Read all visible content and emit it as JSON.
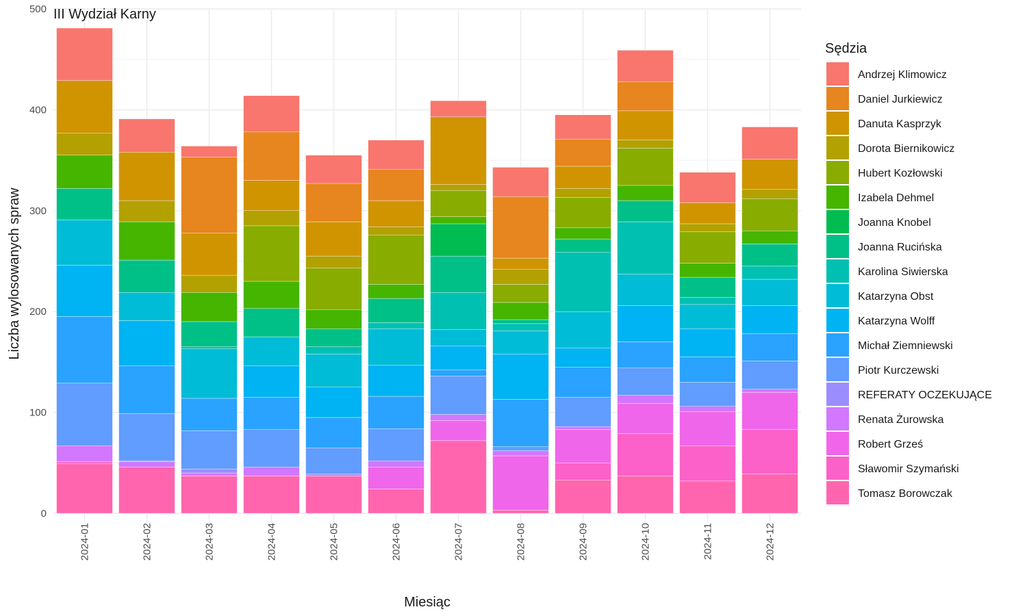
{
  "chart_data": {
    "type": "bar",
    "stacked": true,
    "title": "III Wydział Karny",
    "xlabel": "Miesiąc",
    "ylabel": "Liczba wylosowanych spraw",
    "ylim": [
      0,
      500
    ],
    "yticks": [
      0,
      100,
      200,
      300,
      400,
      500
    ],
    "grid": true,
    "legend_title": "Sędzia",
    "legend_position": "right",
    "categories": [
      "2024-01",
      "2024-02",
      "2024-03",
      "2024-04",
      "2024-05",
      "2024-06",
      "2024-07",
      "2024-08",
      "2024-09",
      "2024-10",
      "2024-11",
      "2024-12"
    ],
    "series": [
      {
        "name": "Andrzej Klimowicz",
        "color": "#F8766D",
        "values": [
          52,
          33,
          11,
          36,
          28,
          29,
          16,
          29,
          24,
          31,
          30,
          32
        ]
      },
      {
        "name": "Daniel Jurkiewicz",
        "color": "#E7851E",
        "values": [
          0,
          0,
          75,
          48,
          38,
          31,
          0,
          61,
          27,
          29,
          0,
          0
        ]
      },
      {
        "name": "Danuta Kasprzyk",
        "color": "#D09400",
        "values": [
          52,
          48,
          42,
          30,
          34,
          26,
          67,
          11,
          22,
          29,
          21,
          30
        ]
      },
      {
        "name": "Dorota Biernikowicz",
        "color": "#B2A100",
        "values": [
          22,
          21,
          17,
          15,
          12,
          8,
          6,
          15,
          9,
          8,
          8,
          9
        ]
      },
      {
        "name": "Hubert Kozłowski",
        "color": "#89AC00",
        "values": [
          0,
          0,
          0,
          55,
          41,
          49,
          26,
          18,
          30,
          37,
          31,
          32
        ]
      },
      {
        "name": "Izabela Dehmel",
        "color": "#45B500",
        "values": [
          33,
          38,
          29,
          27,
          19,
          14,
          7,
          17,
          11,
          15,
          14,
          13
        ]
      },
      {
        "name": "Joanna Knobel",
        "color": "#00BC51",
        "values": [
          0,
          0,
          0,
          0,
          0,
          0,
          32,
          0,
          0,
          0,
          0,
          0
        ]
      },
      {
        "name": "Joanna Rucińska",
        "color": "#00C087",
        "values": [
          31,
          32,
          25,
          28,
          18,
          24,
          36,
          4,
          13,
          21,
          20,
          22
        ]
      },
      {
        "name": "Karolina Siwierska",
        "color": "#00C0B2",
        "values": [
          0,
          0,
          2,
          0,
          7,
          6,
          37,
          7,
          59,
          52,
          7,
          13
        ]
      },
      {
        "name": "Katarzyna Obst",
        "color": "#00BCD6",
        "values": [
          45,
          28,
          49,
          29,
          33,
          36,
          16,
          23,
          36,
          31,
          24,
          26
        ]
      },
      {
        "name": "Katarzyna Wolff",
        "color": "#00B3F2",
        "values": [
          51,
          45,
          0,
          31,
          30,
          31,
          24,
          45,
          19,
          36,
          28,
          28
        ]
      },
      {
        "name": "Michał Ziemniewski",
        "color": "#29A3FF",
        "values": [
          66,
          47,
          32,
          32,
          30,
          32,
          6,
          47,
          30,
          26,
          25,
          27
        ]
      },
      {
        "name": "Piotr Kurczewski",
        "color": "#619CFF",
        "values": [
          62,
          47,
          38,
          37,
          26,
          32,
          38,
          4,
          29,
          27,
          24,
          28
        ]
      },
      {
        "name": "REFERATY OCZEKUJĄCE",
        "color": "#9C8DFF",
        "values": [
          0,
          1,
          4,
          0,
          2,
          0,
          0,
          0,
          0,
          0,
          0,
          0
        ]
      },
      {
        "name": "Renata Żurowska",
        "color": "#D277FF",
        "values": [
          16,
          5,
          3,
          9,
          0,
          6,
          6,
          5,
          3,
          8,
          5,
          3
        ]
      },
      {
        "name": "Robert Grześ",
        "color": "#F066EA",
        "values": [
          0,
          0,
          0,
          0,
          0,
          22,
          20,
          54,
          33,
          30,
          34,
          37
        ]
      },
      {
        "name": "Sławomir Szymański",
        "color": "#FC61C9",
        "values": [
          2,
          0,
          0,
          0,
          0,
          0,
          0,
          0,
          17,
          42,
          35,
          44
        ]
      },
      {
        "name": "Tomasz Borowczak",
        "color": "#FF65AE",
        "values": [
          49,
          46,
          37,
          37,
          37,
          24,
          72,
          3,
          33,
          37,
          32,
          39
        ]
      }
    ]
  }
}
